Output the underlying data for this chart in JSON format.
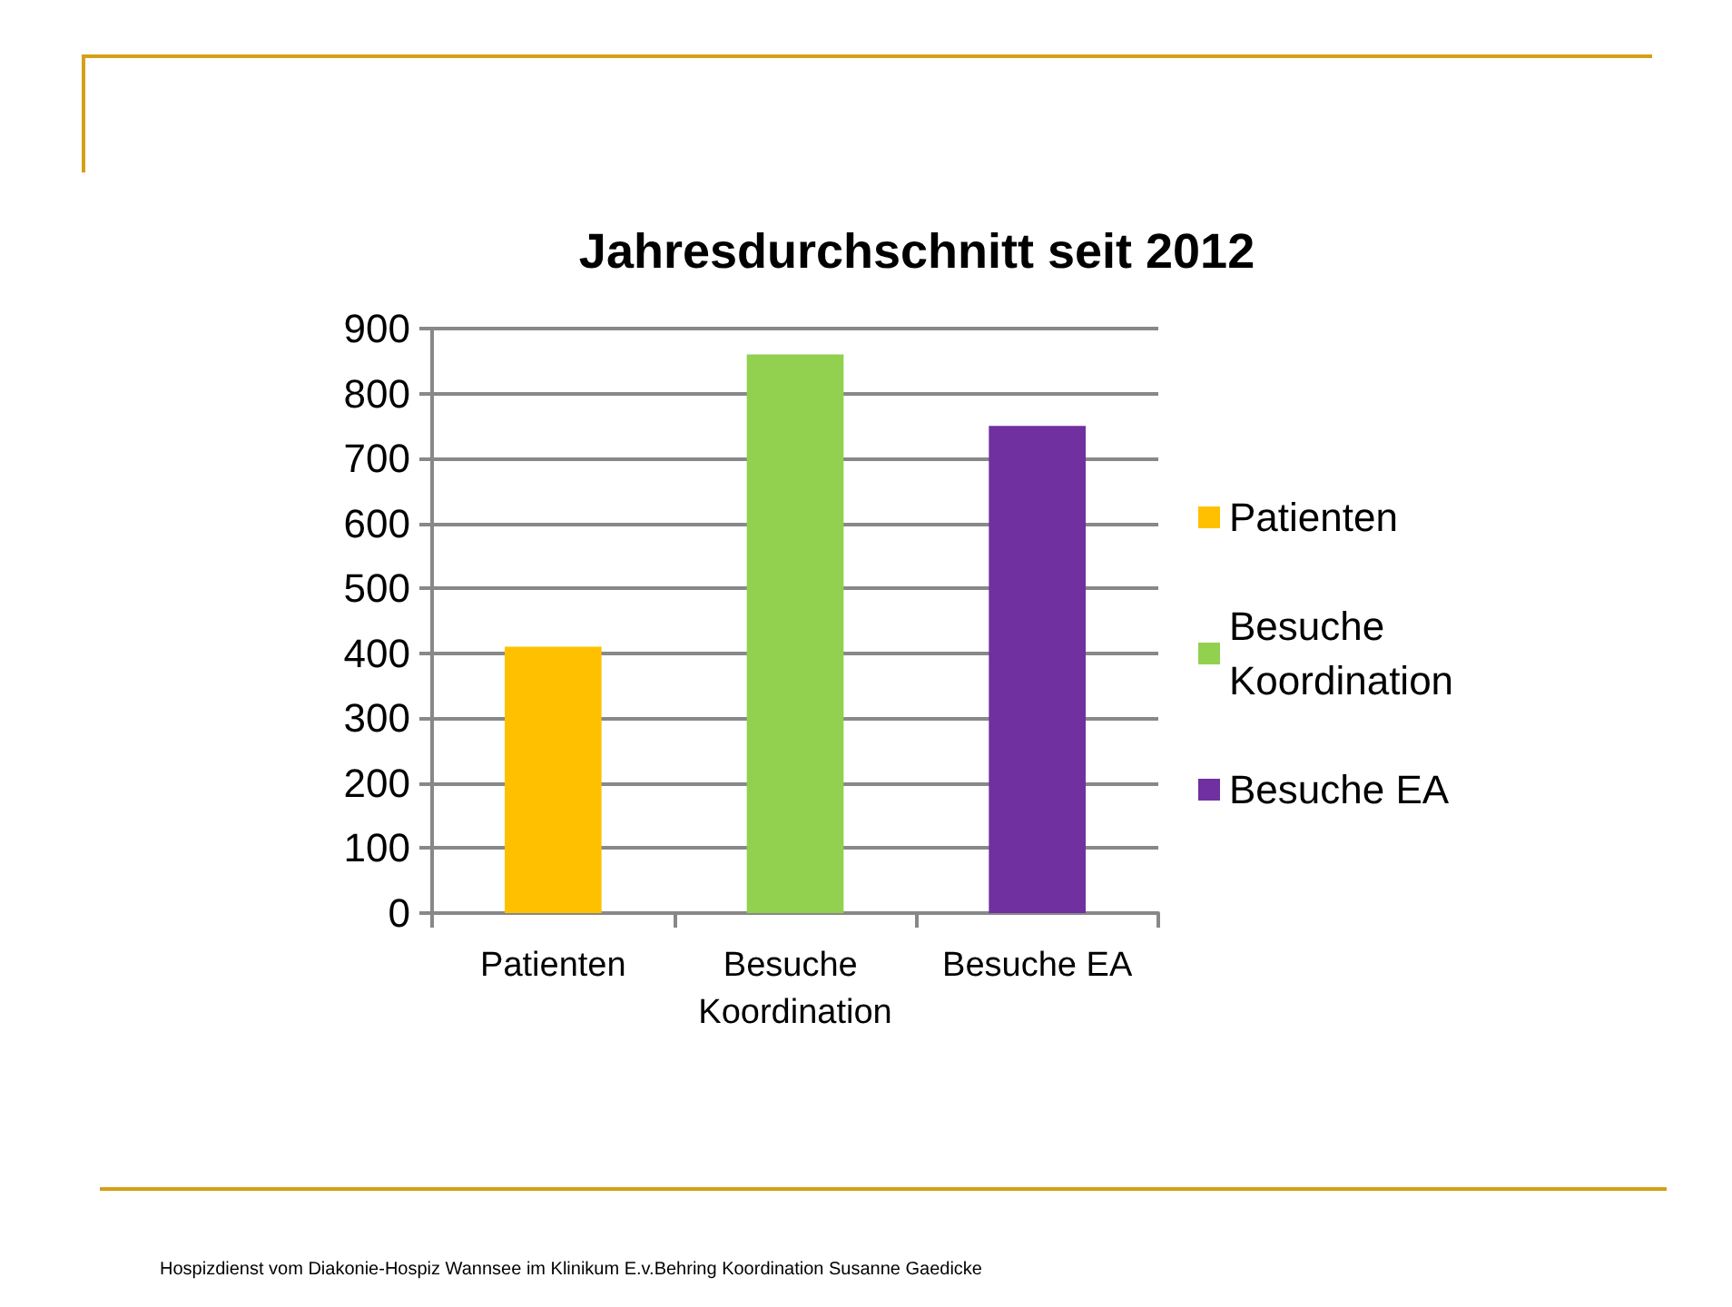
{
  "chart_data": {
    "type": "bar",
    "title": "Jahresdurchschnitt seit 2012",
    "categories": [
      "Patienten",
      "Besuche Koordination",
      "Besuche EA"
    ],
    "series": [
      {
        "name": "Patienten",
        "color": "#ffc000",
        "values": [
          410,
          null,
          null
        ]
      },
      {
        "name": "Besuche Koordination",
        "color": "#92d050",
        "values": [
          null,
          860,
          null
        ]
      },
      {
        "name": "Besuche EA",
        "color": "#7030a0",
        "values": [
          null,
          null,
          750
        ]
      }
    ],
    "ylim": [
      0,
      900
    ],
    "yticks": [
      0,
      100,
      200,
      300,
      400,
      500,
      600,
      700,
      800,
      900
    ],
    "grid": "y",
    "legend": "right",
    "annotations": [
      "Hospizdienst vom Diakonie-Hospiz Wannsee im Klinikum E.v.Behring  Koordination Susanne Gaedicke"
    ]
  }
}
